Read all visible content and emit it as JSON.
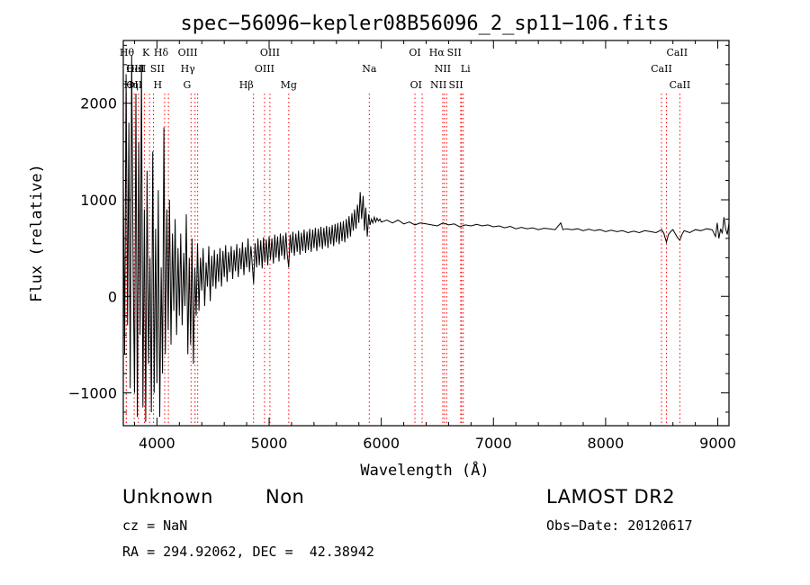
{
  "chart_data": {
    "type": "line",
    "title": "spec−56096−kepler08B56096_2_sp11−106.fits",
    "xlabel": "Wavelength (Å)",
    "ylabel": "Flux (relative)",
    "xlim": [
      3700,
      9100
    ],
    "ylim": [
      -1340,
      2650
    ],
    "xticks": [
      4000,
      5000,
      6000,
      7000,
      8000,
      9000
    ],
    "xtick_labels": [
      "4000",
      "5000",
      "6000",
      "7000",
      "8000",
      "9000"
    ],
    "yticks": [
      -1000,
      0,
      1000,
      2000
    ],
    "ytick_labels": [
      "−1000",
      "0",
      "1000",
      "2000"
    ],
    "grid": false,
    "legend": "none",
    "line_color": "#000000",
    "marker_color": "#ff0000",
    "spectrum_points": [
      [
        3700,
        1200
      ],
      [
        3712,
        -600
      ],
      [
        3725,
        2300
      ],
      [
        3738,
        -300
      ],
      [
        3750,
        1800
      ],
      [
        3762,
        -950
      ],
      [
        3775,
        2500
      ],
      [
        3788,
        200
      ],
      [
        3800,
        -1000
      ],
      [
        3812,
        2100
      ],
      [
        3825,
        -1250
      ],
      [
        3838,
        1600
      ],
      [
        3850,
        -400
      ],
      [
        3862,
        2400
      ],
      [
        3875,
        -1150
      ],
      [
        3888,
        900
      ],
      [
        3900,
        -1300
      ],
      [
        3912,
        1300
      ],
      [
        3925,
        -700
      ],
      [
        3938,
        400
      ],
      [
        3950,
        -1200
      ],
      [
        3962,
        1500
      ],
      [
        3975,
        -1000
      ],
      [
        3988,
        700
      ],
      [
        4000,
        -900
      ],
      [
        4012,
        1100
      ],
      [
        4025,
        -1250
      ],
      [
        4038,
        300
      ],
      [
        4050,
        -800
      ],
      [
        4062,
        1750
      ],
      [
        4075,
        -600
      ],
      [
        4088,
        900
      ],
      [
        4100,
        -350
      ],
      [
        4112,
        1000
      ],
      [
        4125,
        -500
      ],
      [
        4138,
        650
      ],
      [
        4150,
        -150
      ],
      [
        4162,
        800
      ],
      [
        4175,
        -400
      ],
      [
        4188,
        500
      ],
      [
        4200,
        -200
      ],
      [
        4212,
        650
      ],
      [
        4225,
        -300
      ],
      [
        4238,
        450
      ],
      [
        4250,
        -100
      ],
      [
        4262,
        850
      ],
      [
        4275,
        -600
      ],
      [
        4288,
        400
      ],
      [
        4300,
        -500
      ],
      [
        4312,
        600
      ],
      [
        4325,
        -700
      ],
      [
        4338,
        300
      ],
      [
        4350,
        -200
      ],
      [
        4362,
        550
      ],
      [
        4375,
        -150
      ],
      [
        4388,
        400
      ],
      [
        4400,
        60
      ],
      [
        4412,
        500
      ],
      [
        4425,
        -100
      ],
      [
        4438,
        350
      ],
      [
        4450,
        100
      ],
      [
        4462,
        520
      ],
      [
        4475,
        -50
      ],
      [
        4488,
        420
      ],
      [
        4500,
        100
      ],
      [
        4512,
        480
      ],
      [
        4525,
        80
      ],
      [
        4538,
        440
      ],
      [
        4550,
        150
      ],
      [
        4562,
        500
      ],
      [
        4575,
        100
      ],
      [
        4588,
        470
      ],
      [
        4600,
        200
      ],
      [
        4612,
        530
      ],
      [
        4625,
        150
      ],
      [
        4638,
        460
      ],
      [
        4650,
        250
      ],
      [
        4662,
        520
      ],
      [
        4675,
        180
      ],
      [
        4688,
        480
      ],
      [
        4700,
        260
      ],
      [
        4712,
        540
      ],
      [
        4725,
        200
      ],
      [
        4738,
        500
      ],
      [
        4750,
        280
      ],
      [
        4762,
        560
      ],
      [
        4775,
        220
      ],
      [
        4788,
        510
      ],
      [
        4800,
        300
      ],
      [
        4812,
        600
      ],
      [
        4825,
        250
      ],
      [
        4838,
        520
      ],
      [
        4850,
        330
      ],
      [
        4862,
        130
      ],
      [
        4875,
        550
      ],
      [
        4888,
        300
      ],
      [
        4900,
        600
      ],
      [
        4912,
        320
      ],
      [
        4925,
        580
      ],
      [
        4938,
        290
      ],
      [
        4950,
        610
      ],
      [
        4962,
        350
      ],
      [
        4975,
        590
      ],
      [
        4988,
        320
      ],
      [
        5000,
        620
      ],
      [
        5012,
        380
      ],
      [
        5025,
        600
      ],
      [
        5038,
        340
      ],
      [
        5050,
        640
      ],
      [
        5062,
        400
      ],
      [
        5075,
        620
      ],
      [
        5088,
        360
      ],
      [
        5100,
        650
      ],
      [
        5112,
        420
      ],
      [
        5125,
        630
      ],
      [
        5138,
        380
      ],
      [
        5150,
        660
      ],
      [
        5162,
        430
      ],
      [
        5175,
        300
      ],
      [
        5188,
        640
      ],
      [
        5200,
        450
      ],
      [
        5212,
        670
      ],
      [
        5225,
        420
      ],
      [
        5238,
        650
      ],
      [
        5250,
        460
      ],
      [
        5262,
        680
      ],
      [
        5275,
        430
      ],
      [
        5288,
        660
      ],
      [
        5300,
        470
      ],
      [
        5312,
        690
      ],
      [
        5325,
        450
      ],
      [
        5338,
        670
      ],
      [
        5350,
        480
      ],
      [
        5362,
        700
      ],
      [
        5375,
        460
      ],
      [
        5388,
        690
      ],
      [
        5400,
        500
      ],
      [
        5412,
        710
      ],
      [
        5425,
        470
      ],
      [
        5438,
        700
      ],
      [
        5450,
        510
      ],
      [
        5462,
        720
      ],
      [
        5475,
        490
      ],
      [
        5488,
        710
      ],
      [
        5500,
        520
      ],
      [
        5512,
        730
      ],
      [
        5525,
        500
      ],
      [
        5538,
        720
      ],
      [
        5550,
        540
      ],
      [
        5562,
        740
      ],
      [
        5575,
        520
      ],
      [
        5588,
        750
      ],
      [
        5600,
        560
      ],
      [
        5612,
        760
      ],
      [
        5625,
        540
      ],
      [
        5638,
        770
      ],
      [
        5650,
        570
      ],
      [
        5662,
        780
      ],
      [
        5675,
        560
      ],
      [
        5688,
        800
      ],
      [
        5700,
        600
      ],
      [
        5712,
        830
      ],
      [
        5725,
        620
      ],
      [
        5738,
        860
      ],
      [
        5750,
        680
      ],
      [
        5762,
        900
      ],
      [
        5775,
        700
      ],
      [
        5788,
        950
      ],
      [
        5800,
        760
      ],
      [
        5812,
        1080
      ],
      [
        5825,
        800
      ],
      [
        5838,
        1040
      ],
      [
        5850,
        680
      ],
      [
        5862,
        920
      ],
      [
        5875,
        620
      ],
      [
        5888,
        850
      ],
      [
        5900,
        740
      ],
      [
        5912,
        800
      ],
      [
        5925,
        760
      ],
      [
        5938,
        820
      ],
      [
        5950,
        770
      ],
      [
        5962,
        810
      ],
      [
        5975,
        780
      ],
      [
        5988,
        800
      ],
      [
        6000,
        770
      ],
      [
        6050,
        790
      ],
      [
        6100,
        760
      ],
      [
        6150,
        790
      ],
      [
        6200,
        750
      ],
      [
        6250,
        770
      ],
      [
        6300,
        740
      ],
      [
        6350,
        760
      ],
      [
        6400,
        750
      ],
      [
        6450,
        740
      ],
      [
        6500,
        730
      ],
      [
        6550,
        760
      ],
      [
        6600,
        740
      ],
      [
        6650,
        750
      ],
      [
        6700,
        720
      ],
      [
        6750,
        740
      ],
      [
        6800,
        730
      ],
      [
        6850,
        745
      ],
      [
        6900,
        730
      ],
      [
        6950,
        740
      ],
      [
        7000,
        720
      ],
      [
        7050,
        730
      ],
      [
        7100,
        710
      ],
      [
        7150,
        725
      ],
      [
        7200,
        700
      ],
      [
        7250,
        715
      ],
      [
        7300,
        700
      ],
      [
        7350,
        710
      ],
      [
        7400,
        690
      ],
      [
        7450,
        705
      ],
      [
        7500,
        700
      ],
      [
        7550,
        690
      ],
      [
        7600,
        760
      ],
      [
        7620,
        690
      ],
      [
        7650,
        700
      ],
      [
        7700,
        690
      ],
      [
        7750,
        700
      ],
      [
        7800,
        680
      ],
      [
        7850,
        695
      ],
      [
        7900,
        680
      ],
      [
        7950,
        690
      ],
      [
        8000,
        670
      ],
      [
        8050,
        685
      ],
      [
        8100,
        670
      ],
      [
        8150,
        680
      ],
      [
        8200,
        660
      ],
      [
        8250,
        675
      ],
      [
        8300,
        660
      ],
      [
        8350,
        680
      ],
      [
        8400,
        670
      ],
      [
        8450,
        660
      ],
      [
        8500,
        690
      ],
      [
        8520,
        650
      ],
      [
        8542,
        560
      ],
      [
        8560,
        640
      ],
      [
        8580,
        670
      ],
      [
        8600,
        690
      ],
      [
        8620,
        650
      ],
      [
        8640,
        610
      ],
      [
        8662,
        580
      ],
      [
        8680,
        640
      ],
      [
        8700,
        680
      ],
      [
        8750,
        660
      ],
      [
        8800,
        690
      ],
      [
        8850,
        680
      ],
      [
        8900,
        700
      ],
      [
        8950,
        690
      ],
      [
        8980,
        620
      ],
      [
        8995,
        760
      ],
      [
        9010,
        600
      ],
      [
        9025,
        700
      ],
      [
        9040,
        650
      ],
      [
        9055,
        820
      ],
      [
        9070,
        700
      ],
      [
        9085,
        640
      ],
      [
        9100,
        760
      ]
    ],
    "line_markers": [
      {
        "label": "OII",
        "wavelength": 3727,
        "row": 2,
        "anchor": "start"
      },
      {
        "label": "Hθ",
        "wavelength": 3797,
        "row": 0,
        "anchor": "end"
      },
      {
        "label": "OIII",
        "wavelength": 3726,
        "row": 1,
        "anchor": "start"
      },
      {
        "label": "Hη",
        "wavelength": 3835,
        "row": 2,
        "anchor": "end"
      },
      {
        "label": "HeI",
        "wavelength": 3889,
        "row": 1,
        "anchor": "end"
      },
      {
        "label": "K",
        "wavelength": 3934,
        "row": 0,
        "anchor": "end"
      },
      {
        "label": "SII",
        "wavelength": 4069,
        "row": 1,
        "anchor": "end"
      },
      {
        "label": "H",
        "wavelength": 3969,
        "row": 2,
        "anchor": "start"
      },
      {
        "label": "Hδ",
        "wavelength": 4102,
        "row": 0,
        "anchor": "end"
      },
      {
        "label": "OIII",
        "wavelength": 4363,
        "row": 0,
        "anchor": "end"
      },
      {
        "label": "Hγ",
        "wavelength": 4340,
        "row": 1,
        "anchor": "end"
      },
      {
        "label": "G",
        "wavelength": 4304,
        "row": 2,
        "anchor": "end"
      },
      {
        "label": "Hβ",
        "wavelength": 4861,
        "row": 2,
        "anchor": "end"
      },
      {
        "label": "OIII",
        "wavelength": 4959,
        "row": 1,
        "anchor": "middle"
      },
      {
        "label": "OIII",
        "wavelength": 5007,
        "row": 0,
        "anchor": "middle"
      },
      {
        "label": "Mg",
        "wavelength": 5175,
        "row": 2,
        "anchor": "middle"
      },
      {
        "label": "Na",
        "wavelength": 5893,
        "row": 1,
        "anchor": "middle"
      },
      {
        "label": "OI",
        "wavelength": 6300,
        "row": 0,
        "anchor": "middle"
      },
      {
        "label": "OI",
        "wavelength": 6364,
        "row": 2,
        "anchor": "end"
      },
      {
        "label": "NII",
        "wavelength": 6548,
        "row": 1,
        "anchor": "middle"
      },
      {
        "label": "Hα",
        "wavelength": 6563,
        "row": 0,
        "anchor": "end"
      },
      {
        "label": "NII",
        "wavelength": 6583,
        "row": 2,
        "anchor": "end"
      },
      {
        "label": "SII",
        "wavelength": 6716,
        "row": 0,
        "anchor": "end"
      },
      {
        "label": "Li",
        "wavelength": 6708,
        "row": 1,
        "anchor": "start"
      },
      {
        "label": "SII",
        "wavelength": 6731,
        "row": 2,
        "anchor": "end"
      },
      {
        "label": "CaII",
        "wavelength": 8498,
        "row": 1,
        "anchor": "middle"
      },
      {
        "label": "CaII",
        "wavelength": 8542,
        "row": 0,
        "anchor": "start"
      },
      {
        "label": "CaII",
        "wavelength": 8662,
        "row": 2,
        "anchor": "middle"
      }
    ]
  },
  "info": {
    "class_label": "Unknown",
    "subclass_label": "Non",
    "survey": "LAMOST DR2",
    "redshift": "cz = NaN",
    "obs_date": "Obs−Date: 20120617",
    "coords": "RA = 294.92062, DEC =  42.38942"
  }
}
